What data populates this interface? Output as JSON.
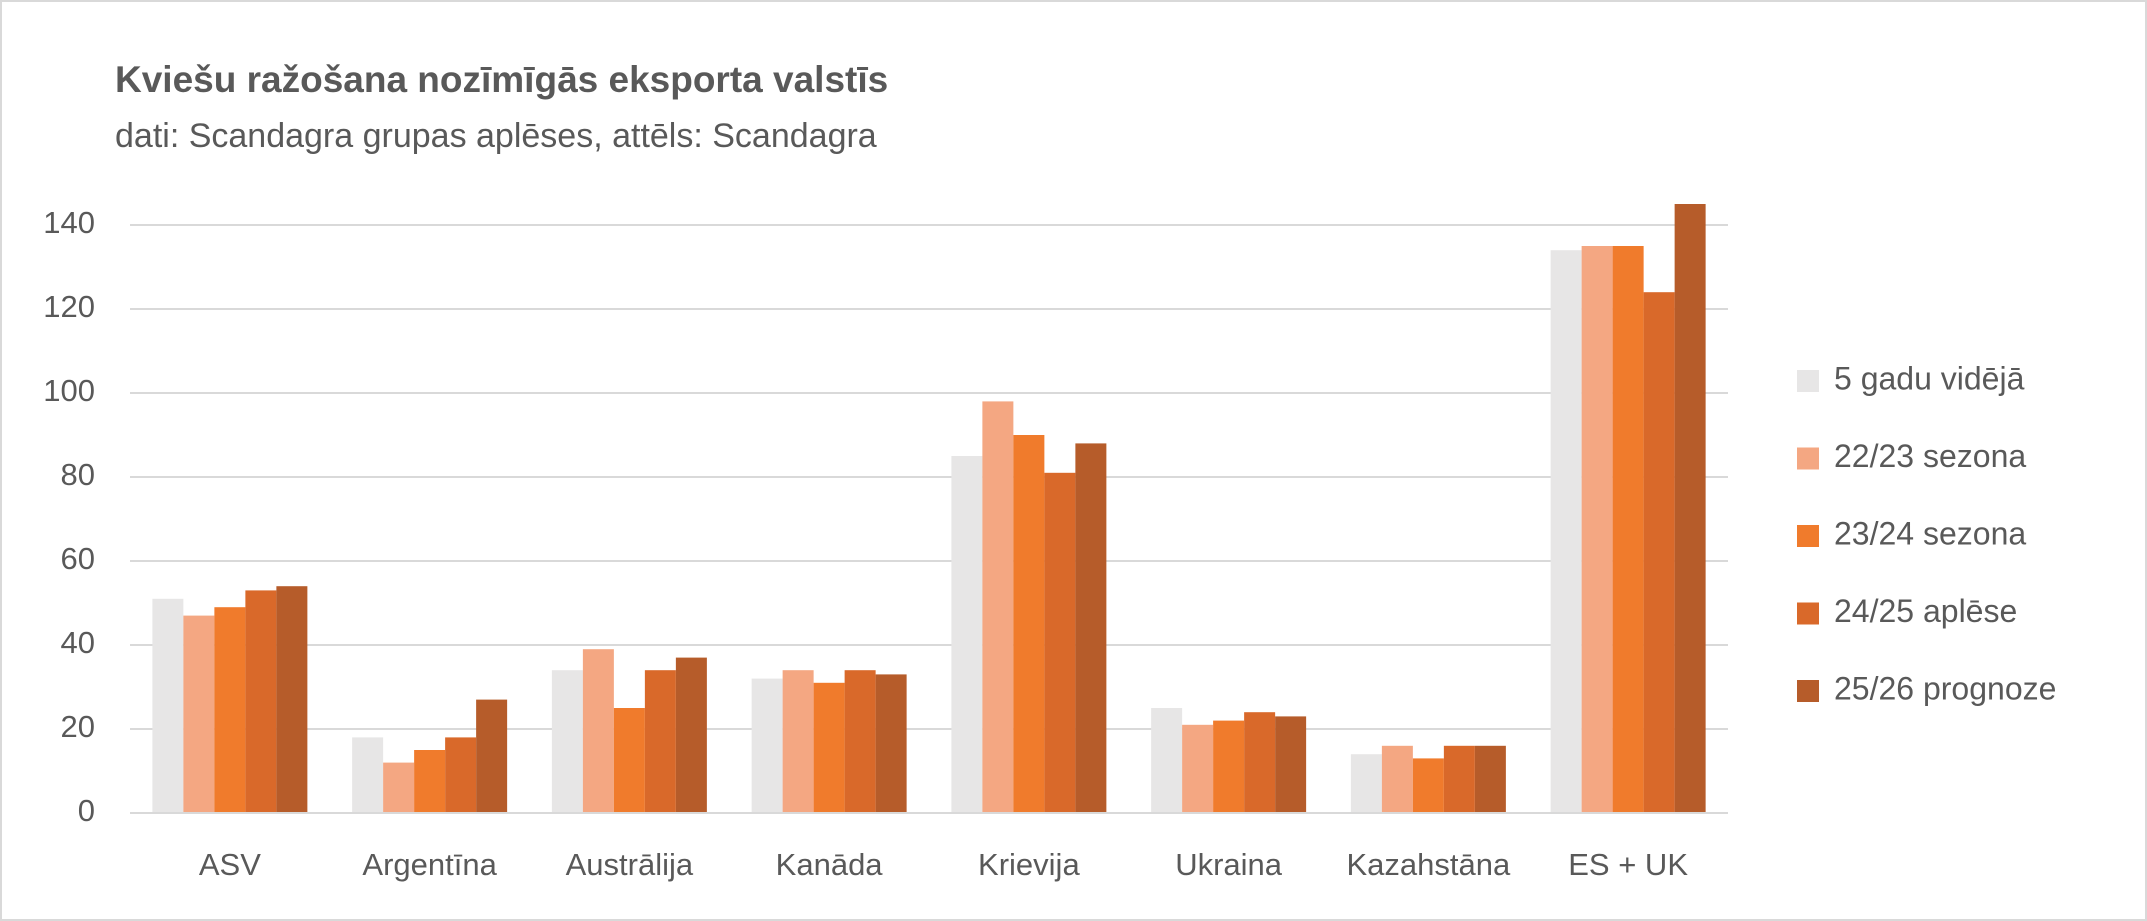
{
  "chart_data": {
    "type": "bar",
    "title": "Kviešu ražošana nozīmīgās eksporta valstīs",
    "subtitle": "dati: Scandagra grupas aplēses, attēls: Scandagra",
    "categories": [
      "ASV",
      "Argentīna",
      "Austrālija",
      "Kanāda",
      "Krievija",
      "Ukraina",
      "Kazahstāna",
      "ES + UK"
    ],
    "series": [
      {
        "name": "5 gadu vidējā",
        "color": "#e7e6e6",
        "values": [
          51,
          18,
          34,
          32,
          85,
          25,
          14,
          134
        ]
      },
      {
        "name": "22/23 sezona",
        "color": "#f4a782",
        "values": [
          47,
          12,
          39,
          34,
          98,
          21,
          16,
          135
        ]
      },
      {
        "name": "23/24 sezona",
        "color": "#f07b2c",
        "values": [
          49,
          15,
          25,
          31,
          90,
          22,
          13,
          135
        ]
      },
      {
        "name": "24/25 aplēse",
        "color": "#d9692a",
        "values": [
          53,
          18,
          34,
          34,
          81,
          24,
          16,
          124
        ]
      },
      {
        "name": "25/26 prognoze",
        "color": "#b65c2a",
        "values": [
          54,
          27,
          37,
          33,
          88,
          23,
          16,
          145
        ]
      }
    ],
    "ylim": [
      0,
      150
    ],
    "yticks": [
      0,
      20,
      40,
      60,
      80,
      100,
      120,
      140
    ],
    "grid": true,
    "legend": "right"
  }
}
